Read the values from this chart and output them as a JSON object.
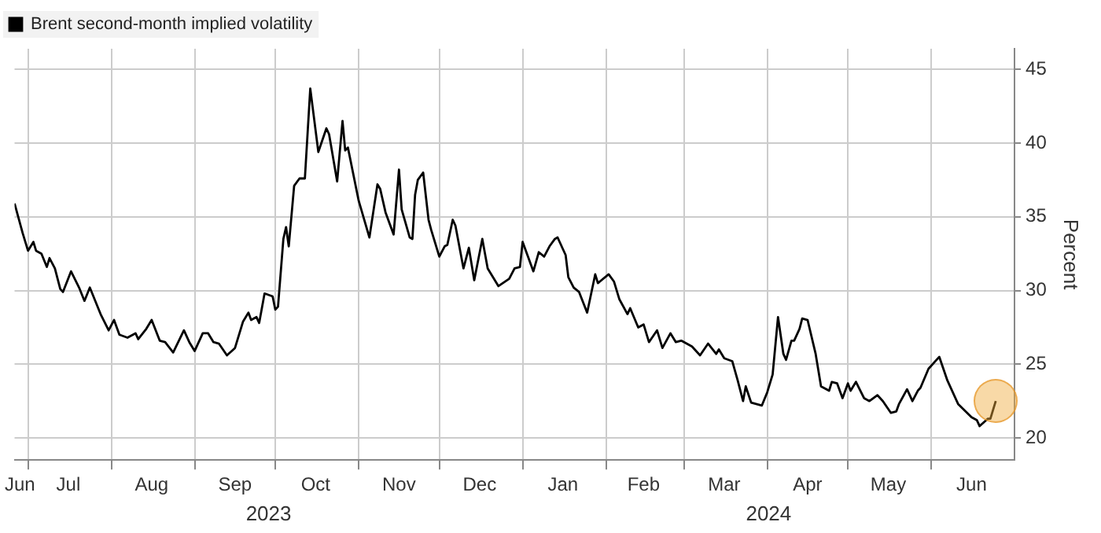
{
  "chart_data": {
    "type": "line",
    "ylabel": "Percent",
    "legend": "top left",
    "grid": true,
    "marker": "none",
    "line_style": "solid",
    "xlim": [
      "2023-06-26",
      "2024-07-02"
    ],
    "xticks": [
      {
        "value": "2023-06-28",
        "label": "Jun"
      },
      {
        "value": "2023-07-01",
        "label": null
      },
      {
        "value": "2023-07-16",
        "label": "Jul"
      },
      {
        "value": "2023-08-01",
        "label": null
      },
      {
        "value": "2023-08-16",
        "label": "Aug"
      },
      {
        "value": "2023-09-01",
        "label": null
      },
      {
        "value": "2023-09-16",
        "label": "Sep"
      },
      {
        "value": "2023-10-01",
        "label": null
      },
      {
        "value": "2023-10-16",
        "label": "Oct"
      },
      {
        "value": "2023-11-01",
        "label": null
      },
      {
        "value": "2023-11-16",
        "label": "Nov"
      },
      {
        "value": "2023-12-01",
        "label": null
      },
      {
        "value": "2023-12-16",
        "label": "Dec"
      },
      {
        "value": "2024-01-01",
        "label": null
      },
      {
        "value": "2024-01-16",
        "label": "Jan"
      },
      {
        "value": "2024-02-01",
        "label": null
      },
      {
        "value": "2024-02-15",
        "label": "Feb"
      },
      {
        "value": "2024-03-01",
        "label": null
      },
      {
        "value": "2024-03-16",
        "label": "Mar"
      },
      {
        "value": "2024-04-01",
        "label": null
      },
      {
        "value": "2024-04-16",
        "label": "Apr"
      },
      {
        "value": "2024-05-01",
        "label": null
      },
      {
        "value": "2024-05-16",
        "label": "May"
      },
      {
        "value": "2024-06-01",
        "label": null
      },
      {
        "value": "2024-06-16",
        "label": "Jun"
      }
    ],
    "annotations": [
      "2023",
      "2024"
    ],
    "ylim": [
      18.5,
      46.4
    ],
    "yticks": [
      20,
      25,
      30,
      35,
      40,
      45
    ],
    "x": [
      "2023-06-26",
      "2023-06-29",
      "2023-07-01",
      "2023-07-03",
      "2023-07-04",
      "2023-07-06",
      "2023-07-08",
      "2023-07-09",
      "2023-07-11",
      "2023-07-13",
      "2023-07-14",
      "2023-07-17",
      "2023-07-20",
      "2023-07-22",
      "2023-07-24",
      "2023-07-28",
      "2023-07-31",
      "2023-08-02",
      "2023-08-04",
      "2023-08-07",
      "2023-08-10",
      "2023-08-11",
      "2023-08-14",
      "2023-08-16",
      "2023-08-19",
      "2023-08-21",
      "2023-08-24",
      "2023-08-28",
      "2023-08-30",
      "2023-09-01",
      "2023-09-04",
      "2023-09-06",
      "2023-09-08",
      "2023-09-10",
      "2023-09-13",
      "2023-09-16",
      "2023-09-19",
      "2023-09-21",
      "2023-09-22",
      "2023-09-24",
      "2023-09-25",
      "2023-09-27",
      "2023-09-30",
      "2023-10-01",
      "2023-10-02",
      "2023-10-04",
      "2023-10-05",
      "2023-10-06",
      "2023-10-08",
      "2023-10-10",
      "2023-10-12",
      "2023-10-14",
      "2023-10-17",
      "2023-10-20",
      "2023-10-21",
      "2023-10-24",
      "2023-10-26",
      "2023-10-27",
      "2023-10-28",
      "2023-11-01",
      "2023-11-05",
      "2023-11-08",
      "2023-11-09",
      "2023-11-11",
      "2023-11-14",
      "2023-11-16",
      "2023-11-17",
      "2023-11-20",
      "2023-11-21",
      "2023-11-22",
      "2023-11-23",
      "2023-11-25",
      "2023-11-27",
      "2023-11-28",
      "2023-12-01",
      "2023-12-03",
      "2023-12-04",
      "2023-12-06",
      "2023-12-07",
      "2023-12-10",
      "2023-12-12",
      "2023-12-14",
      "2023-12-17",
      "2023-12-19",
      "2023-12-23",
      "2023-12-27",
      "2023-12-29",
      "2023-12-31",
      "2024-01-01",
      "2024-01-03",
      "2024-01-05",
      "2024-01-07",
      "2024-01-09",
      "2024-01-11",
      "2024-01-13",
      "2024-01-14",
      "2024-01-17",
      "2024-01-18",
      "2024-01-20",
      "2024-01-22",
      "2024-01-25",
      "2024-01-28",
      "2024-01-29",
      "2024-02-02",
      "2024-02-04",
      "2024-02-06",
      "2024-02-09",
      "2024-02-10",
      "2024-02-13",
      "2024-02-15",
      "2024-02-17",
      "2024-02-20",
      "2024-02-22",
      "2024-02-25",
      "2024-02-27",
      "2024-02-29",
      "2024-03-02",
      "2024-03-04",
      "2024-03-07",
      "2024-03-10",
      "2024-03-13",
      "2024-03-14",
      "2024-03-16",
      "2024-03-19",
      "2024-03-21",
      "2024-03-23",
      "2024-03-24",
      "2024-03-26",
      "2024-03-30",
      "2024-04-01",
      "2024-04-03",
      "2024-04-05",
      "2024-04-07",
      "2024-04-08",
      "2024-04-10",
      "2024-04-11",
      "2024-04-13",
      "2024-04-14",
      "2024-04-16",
      "2024-04-19",
      "2024-04-21",
      "2024-04-24",
      "2024-04-25",
      "2024-04-27",
      "2024-04-29",
      "2024-05-01",
      "2024-05-02",
      "2024-05-04",
      "2024-05-07",
      "2024-05-09",
      "2024-05-12",
      "2024-05-14",
      "2024-05-17",
      "2024-05-19",
      "2024-05-20",
      "2024-05-23",
      "2024-05-25",
      "2024-05-27",
      "2024-05-28",
      "2024-05-31",
      "2024-06-04",
      "2024-06-07",
      "2024-06-11",
      "2024-06-16",
      "2024-06-18",
      "2024-06-19",
      "2024-06-22",
      "2024-06-23",
      "2024-06-25"
    ],
    "series": [
      {
        "name": "Brent second-month implied volatility",
        "color": "#000000",
        "values": [
          35.9,
          33.9,
          32.7,
          33.3,
          32.7,
          32.5,
          31.6,
          32.2,
          31.5,
          30.1,
          29.9,
          31.3,
          30.2,
          29.3,
          30.2,
          28.4,
          27.3,
          28.0,
          27.0,
          26.8,
          27.1,
          26.7,
          27.4,
          28.0,
          26.6,
          26.5,
          25.8,
          27.3,
          26.5,
          25.9,
          27.1,
          27.1,
          26.5,
          26.4,
          25.6,
          26.1,
          27.9,
          28.5,
          28.0,
          28.2,
          27.8,
          29.8,
          29.6,
          28.7,
          28.9,
          33.5,
          34.3,
          33.0,
          37.1,
          37.6,
          37.6,
          43.7,
          39.4,
          41.0,
          40.6,
          37.4,
          41.5,
          39.5,
          39.7,
          36.1,
          33.6,
          37.2,
          36.9,
          35.3,
          33.8,
          38.2,
          35.5,
          33.6,
          33.5,
          36.5,
          37.5,
          38.0,
          34.8,
          34.1,
          32.3,
          33.0,
          33.1,
          34.8,
          34.4,
          31.5,
          32.9,
          30.7,
          33.5,
          31.5,
          30.3,
          30.8,
          31.5,
          31.6,
          33.3,
          32.3,
          31.3,
          32.6,
          32.3,
          33.0,
          33.5,
          33.6,
          32.4,
          30.9,
          30.2,
          29.9,
          28.5,
          31.1,
          30.5,
          31.1,
          30.6,
          29.4,
          28.4,
          28.8,
          27.5,
          27.7,
          26.5,
          27.3,
          26.1,
          27.1,
          26.5,
          26.6,
          26.4,
          26.2,
          25.6,
          26.4,
          25.7,
          26.0,
          25.4,
          25.2,
          23.9,
          22.5,
          23.5,
          22.4,
          22.2,
          23.1,
          24.3,
          28.2,
          25.7,
          25.3,
          26.6,
          26.6,
          27.4,
          28.1,
          28.0,
          25.7,
          23.5,
          23.2,
          23.8,
          23.7,
          22.7,
          23.7,
          23.2,
          23.8,
          22.7,
          22.5,
          22.9,
          22.5,
          21.7,
          21.8,
          22.3,
          23.3,
          22.5,
          23.2,
          23.4,
          24.7,
          25.5,
          23.9,
          22.3,
          21.4,
          21.2,
          20.8,
          21.3,
          21.3,
          22.5
        ]
      }
    ]
  }
}
